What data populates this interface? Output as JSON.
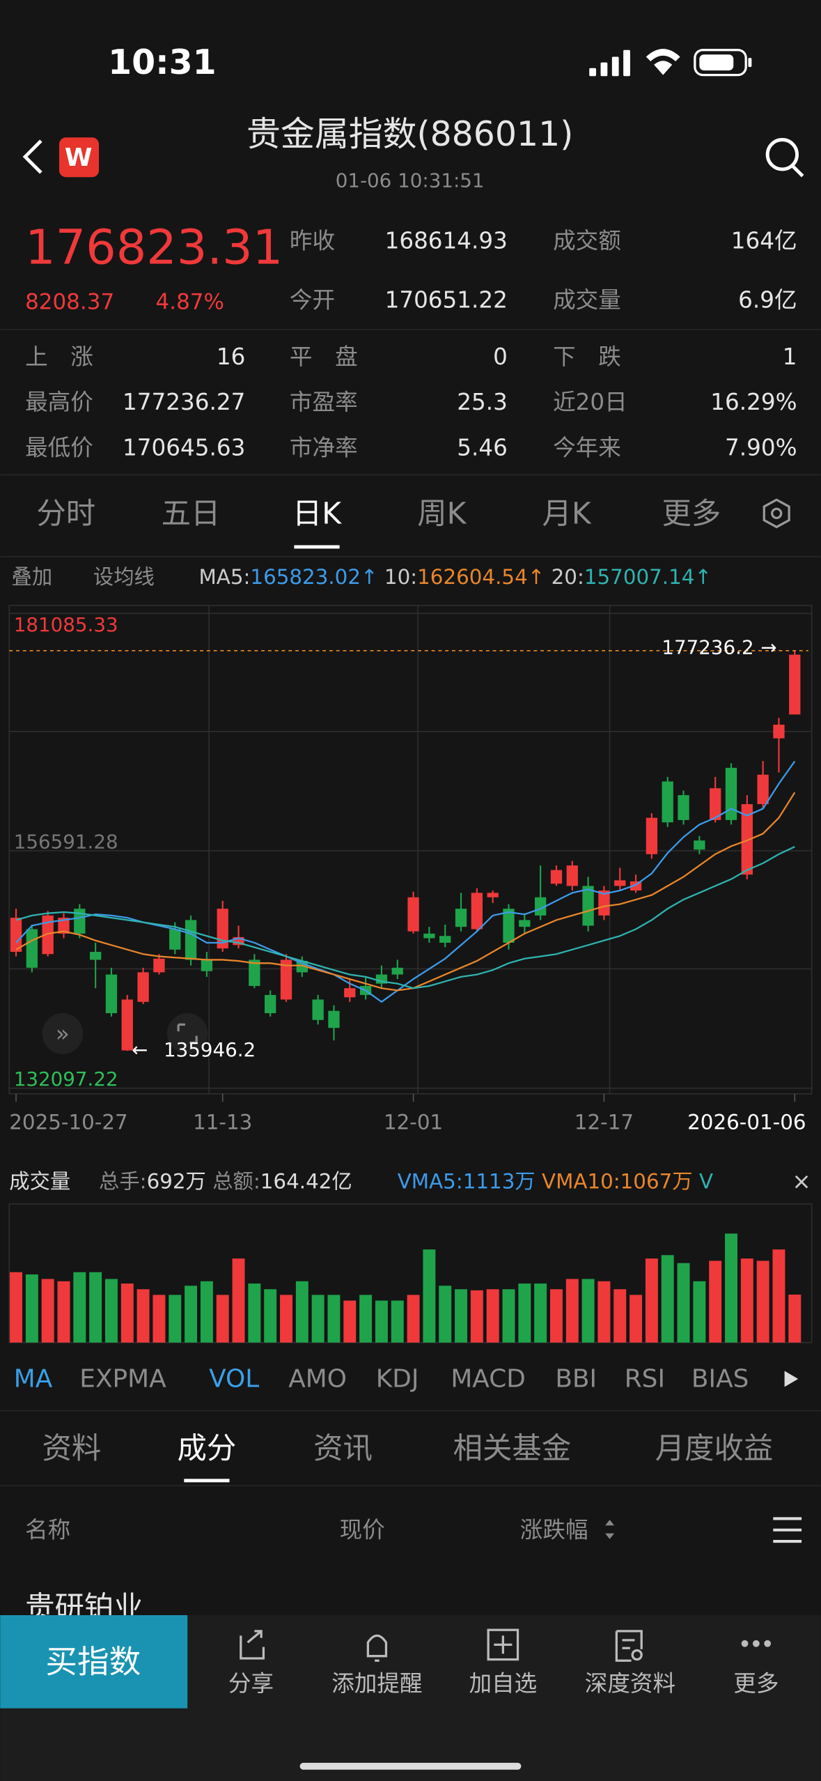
{
  "status_bar": {
    "time": "10:31"
  },
  "header": {
    "logo": "W",
    "title": "贵金属指数(886011)",
    "subtitle": "01-06 10:31:51"
  },
  "quote": {
    "price": "176823.31",
    "change": "8208.37",
    "change_pct": "4.87%",
    "rows": [
      [
        "昨收",
        "168614.93",
        "成交额",
        "164亿"
      ],
      [
        "今开",
        "170651.22",
        "成交量",
        "6.9亿"
      ]
    ]
  },
  "stats": [
    [
      "上　涨",
      "16",
      "平　盘",
      "0",
      "下　跌",
      "1"
    ],
    [
      "最高价",
      "177236.27",
      "市盈率",
      "25.3",
      "近20日",
      "16.29%"
    ],
    [
      "最低价",
      "170645.63",
      "市净率",
      "5.46",
      "今年来",
      "7.90%"
    ]
  ],
  "period_tabs": {
    "items": [
      "分时",
      "五日",
      "日K",
      "周K",
      "月K",
      "更多"
    ],
    "active": 2
  },
  "ma_bar": {
    "overlay": "叠加",
    "set_ma": "设均线"
  },
  "chart_data": [
    {
      "type": "candlestick",
      "up_color": "#f0393b",
      "down_color": "#1fa44b",
      "ylim": [
        132097.22,
        181085.33
      ],
      "yticks": [
        132097.22,
        156591.28,
        181085.33
      ],
      "categories": [
        "2025-10-27",
        null,
        null,
        null,
        null,
        null,
        null,
        null,
        null,
        null,
        null,
        null,
        null,
        "11-13",
        null,
        null,
        null,
        null,
        null,
        null,
        null,
        null,
        null,
        null,
        null,
        "12-01",
        null,
        null,
        null,
        null,
        null,
        null,
        null,
        null,
        null,
        null,
        null,
        "12-17",
        null,
        null,
        null,
        null,
        null,
        null,
        null,
        null,
        null,
        null,
        null,
        "2026-01-06"
      ],
      "open": [
        146160,
        148500,
        145930,
        148040,
        150610,
        146160,
        143820,
        135990,
        141000,
        144050,
        148500,
        149440,
        145340,
        146510,
        146860,
        145340,
        141710,
        141240,
        145220,
        141240,
        140070,
        141470,
        142640,
        143820,
        144520,
        148270,
        148040,
        147800,
        150610,
        148500,
        151790,
        150610,
        149440,
        151790,
        153190,
        152960,
        152960,
        149910,
        152960,
        152490,
        156240,
        163740,
        162330,
        157650,
        159760,
        165150,
        154130,
        161400,
        168190,
        170651.22
      ],
      "close": [
        149680,
        144520,
        149910,
        149680,
        148040,
        145340,
        139830,
        141240,
        144050,
        145460,
        146390,
        145340,
        144170,
        150610,
        147680,
        142640,
        139830,
        145340,
        144050,
        139130,
        138310,
        142410,
        141710,
        142880,
        143820,
        151790,
        147570,
        147100,
        148740,
        152250,
        152250,
        147100,
        148740,
        149910,
        154600,
        155070,
        148860,
        152490,
        153540,
        153430,
        159990,
        159520,
        159760,
        156710,
        163040,
        159760,
        161400,
        164440,
        169600,
        176823.31
      ],
      "high": [
        150610,
        148970,
        150380,
        150140,
        151080,
        147100,
        144520,
        141710,
        144520,
        145930,
        149210,
        149910,
        146160,
        151430,
        148860,
        145930,
        142180,
        145930,
        145690,
        141710,
        140650,
        143350,
        143580,
        144750,
        145340,
        152370,
        148740,
        148970,
        152250,
        152720,
        152490,
        151080,
        150140,
        155070,
        155070,
        155540,
        153900,
        152960,
        154830,
        154130,
        160460,
        164210,
        162800,
        158110,
        164210,
        165620,
        162330,
        165850,
        170300,
        177236.27
      ],
      "low": [
        145690,
        144050,
        145690,
        147570,
        147570,
        142410,
        139480,
        135946.2,
        140770,
        143820,
        145930,
        144750,
        143580,
        146160,
        146510,
        142410,
        139480,
        141000,
        143580,
        138660,
        137020,
        141000,
        141240,
        142410,
        143350,
        148040,
        147100,
        146630,
        148270,
        148270,
        151200,
        146390,
        148040,
        149440,
        152960,
        152490,
        148270,
        149440,
        152490,
        152250,
        155770,
        159050,
        159290,
        156240,
        159520,
        159290,
        153660,
        160930,
        164680,
        170645.63
      ],
      "series": [
        {
          "name": "MA5:",
          "last_label": "165823.02↑",
          "color": "#3d9be9",
          "values": [
            147100,
            148860,
            149210,
            149440,
            149680,
            150030,
            149910,
            149680,
            149210,
            148860,
            148500,
            148040,
            147100,
            147100,
            147570,
            147100,
            146390,
            145690,
            144990,
            144400,
            143820,
            142880,
            142180,
            141000,
            142180,
            143350,
            144400,
            145460,
            146860,
            148270,
            149910,
            150260,
            150030,
            150610,
            151430,
            152250,
            152610,
            152140,
            152490,
            153070,
            154250,
            156360,
            158000,
            159290,
            159990,
            160930,
            160220,
            160930,
            163510,
            165823.02
          ]
        },
        {
          "name": "10:",
          "last_label": "162604.54↑",
          "color": "#e8862c",
          "values": [
            146390,
            147330,
            148040,
            148270,
            147920,
            147330,
            146860,
            146390,
            145930,
            145690,
            145570,
            145460,
            145340,
            145340,
            145220,
            144990,
            144990,
            144750,
            144750,
            144280,
            143820,
            143350,
            142880,
            142410,
            142180,
            142410,
            143110,
            143820,
            144520,
            145220,
            146160,
            147100,
            148040,
            148740,
            149440,
            149910,
            150380,
            150850,
            151080,
            151550,
            152020,
            152960,
            153900,
            155070,
            156240,
            157060,
            157650,
            158350,
            159990,
            162604.54
          ]
        },
        {
          "name": "20:",
          "last_label": "157007.14↑",
          "color": "#2fb3b0",
          "values": [
            149440,
            149910,
            150140,
            150260,
            150140,
            149910,
            149680,
            149440,
            149210,
            148970,
            148740,
            148270,
            147800,
            147330,
            147100,
            146630,
            146160,
            145690,
            145220,
            144750,
            144280,
            143820,
            143580,
            143110,
            142880,
            142410,
            142640,
            143110,
            143580,
            143820,
            144280,
            144990,
            145460,
            145690,
            145930,
            146390,
            146860,
            147330,
            147800,
            148500,
            149440,
            150610,
            151550,
            152250,
            152960,
            153660,
            154600,
            155300,
            156240,
            157007.14
          ]
        }
      ],
      "high_marker": 177236.2,
      "low_marker": 135946.2
    },
    {
      "type": "bar",
      "title": "成交量",
      "ylim": [
        0,
        2000
      ],
      "stats": [
        {
          "label": "总手:",
          "value": "692万"
        },
        {
          "label": "总额:",
          "value": "164.42亿"
        }
      ],
      "legend": [
        {
          "text": "VMA5:1113万",
          "color": "#3d9be9"
        },
        {
          "text": "VMA10:1067万",
          "color": "#e8862c"
        },
        {
          "text": "V",
          "color": "#2fb3b0"
        }
      ],
      "values": [
        1016,
        983,
        918,
        885,
        1016,
        1016,
        918,
        852,
        770,
        688,
        688,
        820,
        885,
        688,
        1213,
        852,
        770,
        688,
        885,
        688,
        688,
        606,
        688,
        606,
        606,
        688,
        1344,
        820,
        770,
        754,
        770,
        770,
        852,
        852,
        770,
        918,
        918,
        885,
        770,
        688,
        1213,
        1262,
        1147,
        885,
        1180,
        1573,
        1213,
        1180,
        1344,
        692
      ]
    }
  ],
  "indicator_tabs": {
    "items": [
      "MA",
      "EXPMA",
      "VOL",
      "AMO",
      "KDJ",
      "MACD",
      "BBI",
      "RSI",
      "BIAS"
    ],
    "active": [
      0,
      2
    ]
  },
  "section_tabs": {
    "items": [
      "资料",
      "成分",
      "资讯",
      "相关基金",
      "月度收益"
    ],
    "active": 1
  },
  "table": {
    "headers": [
      "名称",
      "现价",
      "涨跌幅"
    ],
    "rows": [
      [
        "贵研铂业"
      ]
    ]
  },
  "bottom_bar": {
    "primary": "买指数",
    "items": [
      "分享",
      "添加提醒",
      "加自选",
      "深度资料",
      "更多"
    ]
  }
}
